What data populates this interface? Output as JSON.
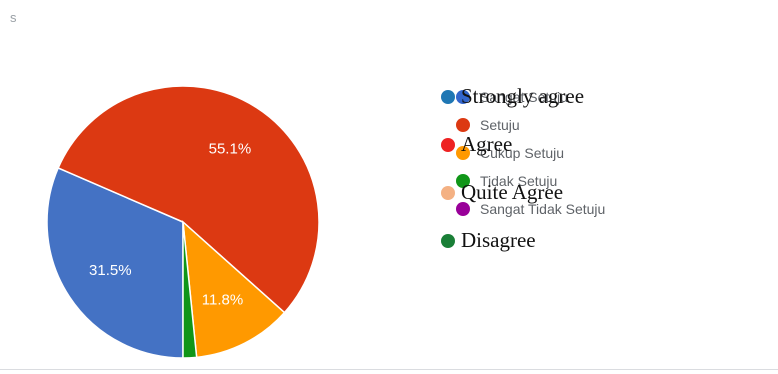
{
  "page": {
    "corner_text": "s"
  },
  "chart_data": {
    "type": "pie",
    "title": "",
    "slices": [
      {
        "label": "Sangat Setuju",
        "value": 31.5,
        "color": "#4472c4",
        "display": "31.5%"
      },
      {
        "label": "Setuju",
        "value": 55.1,
        "color": "#dc3912",
        "display": "55.1%"
      },
      {
        "label": "Cukup Setuju",
        "value": 11.8,
        "color": "#ff9900",
        "display": "11.8%"
      },
      {
        "label": "Tidak Setuju",
        "value": 1.6,
        "color": "#109618",
        "display": ""
      },
      {
        "label": "Sangat Tidak Setuju",
        "value": 0.0,
        "color": "#990099",
        "display": ""
      }
    ],
    "legend": {
      "placement": "right",
      "items": [
        {
          "label": "Sangat Setuju",
          "color": "#3366cc"
        },
        {
          "label": "Setuju",
          "color": "#dc3912"
        },
        {
          "label": "Cukup Setuju",
          "color": "#ff9900"
        },
        {
          "label": "Tidak Setuju",
          "color": "#109618"
        },
        {
          "label": "Sangat Tidak Setuju",
          "color": "#990099"
        }
      ]
    },
    "overlay_legend": [
      {
        "label": "Strongly agree",
        "color": "#1f77b4"
      },
      {
        "label": "Agree",
        "color": "#ee2222"
      },
      {
        "label": "Quite Agree",
        "color": "#f4b183"
      },
      {
        "label": "Disagree",
        "color": "#1a7f37"
      }
    ]
  }
}
